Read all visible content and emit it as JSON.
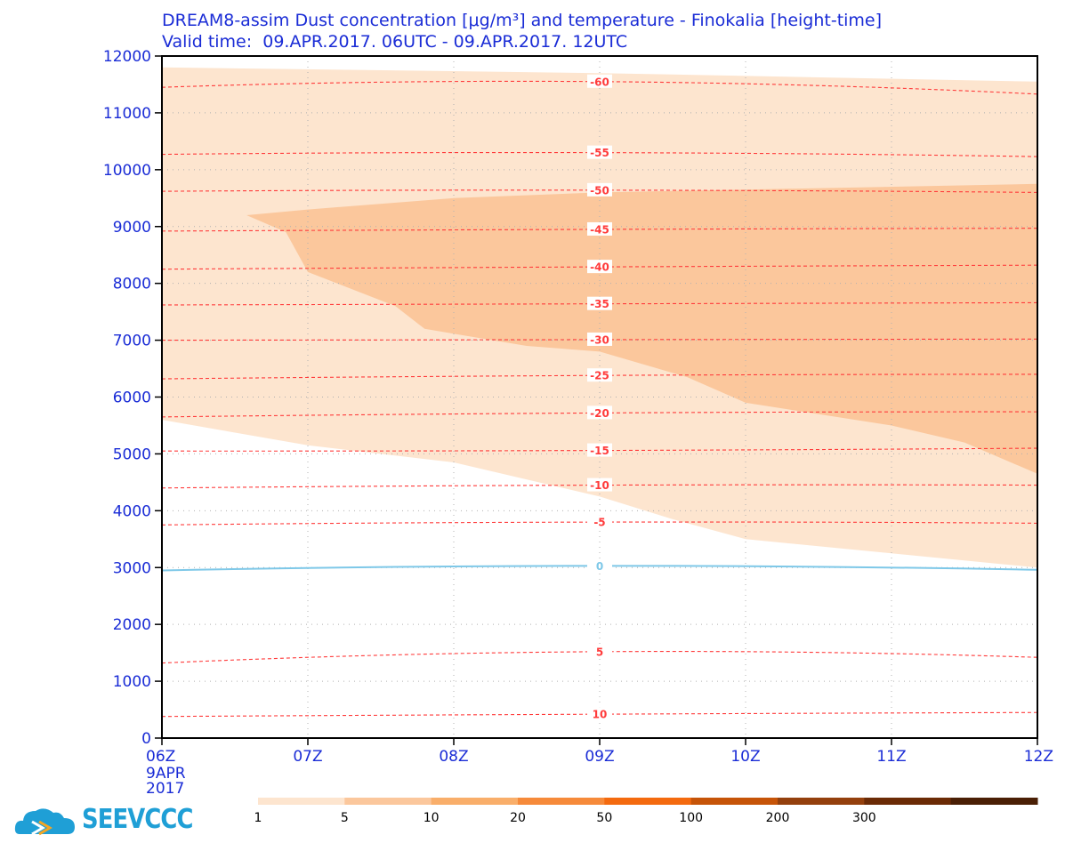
{
  "title": {
    "line1": "DREAM8-assim Dust concentration [μg/m³] and temperature - Finokalia [height-time]",
    "line2": "Valid time:  09.APR.2017. 06UTC - 09.APR.2017. 12UTC"
  },
  "logo": {
    "text": "SEEVCCC",
    "icon": "cloud-logo-icon"
  },
  "chart_data": {
    "type": "contour",
    "x": {
      "ticks": [
        "06Z",
        "07Z",
        "08Z",
        "09Z",
        "10Z",
        "11Z",
        "12Z"
      ],
      "first_tick_sublabels": [
        "9APR",
        "2017"
      ],
      "range_hours": [
        6,
        12
      ]
    },
    "y": {
      "ticks": [
        0,
        1000,
        2000,
        3000,
        4000,
        5000,
        6000,
        7000,
        8000,
        9000,
        10000,
        11000,
        12000
      ],
      "range": [
        0,
        12000
      ]
    },
    "grid": "dotted",
    "dust_concentration_levels": [
      1,
      5,
      10,
      20,
      50,
      100,
      200,
      300
    ],
    "dust_colorbar_colors": [
      "#fde5cf",
      "#fbc79c",
      "#f9ae6a",
      "#f68a3a",
      "#f46a0f",
      "#c65408",
      "#94400d",
      "#6b2b06",
      "#4a1f05"
    ],
    "dust_regions": [
      {
        "level": "1-5",
        "color": "#fde5cf",
        "upper_boundary": [
          [
            6,
            11800
          ],
          [
            9,
            11700
          ],
          [
            12,
            11550
          ]
        ],
        "lower_boundary": [
          [
            6,
            5600
          ],
          [
            7,
            5150
          ],
          [
            8,
            4850
          ],
          [
            9,
            4250
          ],
          [
            9.5,
            3850
          ],
          [
            10,
            3500
          ],
          [
            11,
            3250
          ],
          [
            12,
            3000
          ]
        ]
      },
      {
        "level": "5-10",
        "color": "#fbc79c",
        "upper_boundary": [
          [
            6.58,
            9200
          ],
          [
            7,
            9300
          ],
          [
            8,
            9500
          ],
          [
            9,
            9600
          ],
          [
            10,
            9650
          ],
          [
            12,
            9750
          ]
        ],
        "lower_boundary": [
          [
            6.58,
            9200
          ],
          [
            6.85,
            8900
          ],
          [
            7,
            8200
          ],
          [
            7.6,
            7600
          ],
          [
            7.8,
            7200
          ],
          [
            8.5,
            6900
          ],
          [
            9,
            6800
          ],
          [
            9.6,
            6350
          ],
          [
            10,
            5900
          ],
          [
            11,
            5500
          ],
          [
            11.5,
            5200
          ],
          [
            12,
            4650
          ]
        ]
      }
    ],
    "temperature_isotherms": [
      {
        "value": 10,
        "label": "10",
        "color": "#ff3b3b",
        "points": [
          [
            6,
            380
          ],
          [
            9,
            420
          ],
          [
            12,
            450
          ]
        ]
      },
      {
        "value": 5,
        "label": "5",
        "color": "#ff3b3b",
        "points": [
          [
            6,
            1320
          ],
          [
            9,
            1520
          ],
          [
            12,
            1420
          ]
        ]
      },
      {
        "value": 0,
        "label": "0",
        "color": "#7ec8e8",
        "points": [
          [
            6,
            2950
          ],
          [
            9,
            3030
          ],
          [
            12,
            2960
          ]
        ]
      },
      {
        "value": -5,
        "label": "-5",
        "color": "#ff3b3b",
        "points": [
          [
            6,
            3750
          ],
          [
            9,
            3800
          ],
          [
            12,
            3780
          ]
        ]
      },
      {
        "value": -10,
        "label": "-10",
        "color": "#ff3b3b",
        "points": [
          [
            6,
            4400
          ],
          [
            9,
            4450
          ],
          [
            12,
            4450
          ]
        ]
      },
      {
        "value": -15,
        "label": "-15",
        "color": "#ff3b3b",
        "points": [
          [
            6,
            5050
          ],
          [
            9,
            5060
          ],
          [
            12,
            5100
          ]
        ]
      },
      {
        "value": -20,
        "label": "-20",
        "color": "#ff3b3b",
        "points": [
          [
            6,
            5650
          ],
          [
            9,
            5720
          ],
          [
            12,
            5740
          ]
        ]
      },
      {
        "value": -25,
        "label": "-25",
        "color": "#ff3b3b",
        "points": [
          [
            6,
            6320
          ],
          [
            9,
            6380
          ],
          [
            12,
            6400
          ]
        ]
      },
      {
        "value": -30,
        "label": "-30",
        "color": "#ff3b3b",
        "points": [
          [
            6,
            7000
          ],
          [
            9,
            7010
          ],
          [
            12,
            7020
          ]
        ]
      },
      {
        "value": -35,
        "label": "-35",
        "color": "#ff3b3b",
        "points": [
          [
            6,
            7620
          ],
          [
            9,
            7640
          ],
          [
            12,
            7660
          ]
        ]
      },
      {
        "value": -40,
        "label": "-40",
        "color": "#ff3b3b",
        "points": [
          [
            6,
            8250
          ],
          [
            9,
            8290
          ],
          [
            12,
            8320
          ]
        ]
      },
      {
        "value": -45,
        "label": "-45",
        "color": "#ff3b3b",
        "points": [
          [
            6,
            8920
          ],
          [
            9,
            8950
          ],
          [
            12,
            8970
          ]
        ]
      },
      {
        "value": -50,
        "label": "-50",
        "color": "#ff3b3b",
        "points": [
          [
            6,
            9620
          ],
          [
            9,
            9640
          ],
          [
            12,
            9600
          ]
        ]
      },
      {
        "value": -55,
        "label": "-55",
        "color": "#ff3b3b",
        "points": [
          [
            6,
            10270
          ],
          [
            9,
            10300
          ],
          [
            12,
            10230
          ]
        ]
      },
      {
        "value": -60,
        "label": "-60",
        "color": "#ff3b3b",
        "points": [
          [
            6,
            11450
          ],
          [
            9,
            11550
          ],
          [
            12,
            11330
          ]
        ]
      }
    ]
  }
}
